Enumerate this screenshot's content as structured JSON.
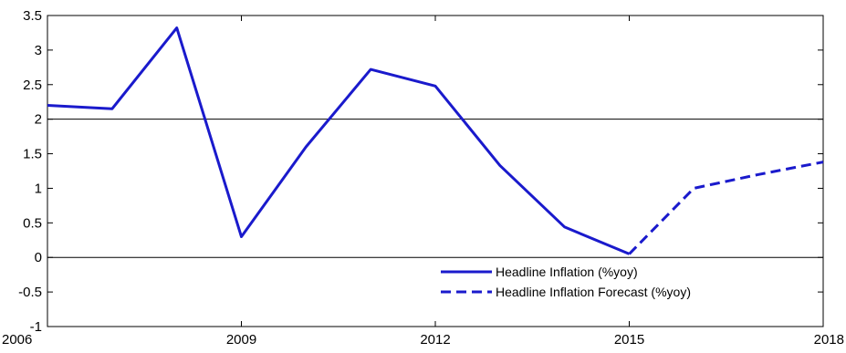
{
  "chart_data": {
    "type": "line",
    "title": "",
    "xlabel": "",
    "ylabel": "",
    "xlim": [
      2006,
      2018
    ],
    "ylim": [
      -1,
      3.5
    ],
    "x_ticks": [
      2006,
      2009,
      2012,
      2015,
      2018
    ],
    "x_tick_labels": [
      "2006",
      "2009",
      "2012",
      "2015",
      "2018"
    ],
    "y_ticks": [
      -1,
      -0.5,
      0,
      0.5,
      1,
      1.5,
      2,
      2.5,
      3,
      3.5
    ],
    "y_tick_labels": [
      "-1",
      "-0.5",
      "0",
      "0.5",
      "1",
      "1.5",
      "2",
      "2.5",
      "3",
      "3.5"
    ],
    "reference_lines": [
      0,
      2
    ],
    "grid": false,
    "legend_position": "bottom-right",
    "series": [
      {
        "name": "Headline Inflation (%yoy)",
        "style": "solid",
        "color": "#1a1acc",
        "x": [
          2006,
          2007,
          2008,
          2009,
          2010,
          2011,
          2012,
          2013,
          2014,
          2015
        ],
        "y": [
          2.2,
          2.15,
          3.32,
          0.3,
          1.6,
          2.72,
          2.48,
          1.33,
          0.44,
          0.05
        ]
      },
      {
        "name": "Headline Inflation Forecast (%yoy)",
        "style": "dashed",
        "color": "#1a1acc",
        "x": [
          2015,
          2016,
          2017,
          2018
        ],
        "y": [
          0.05,
          1.0,
          1.2,
          1.38
        ]
      }
    ]
  }
}
